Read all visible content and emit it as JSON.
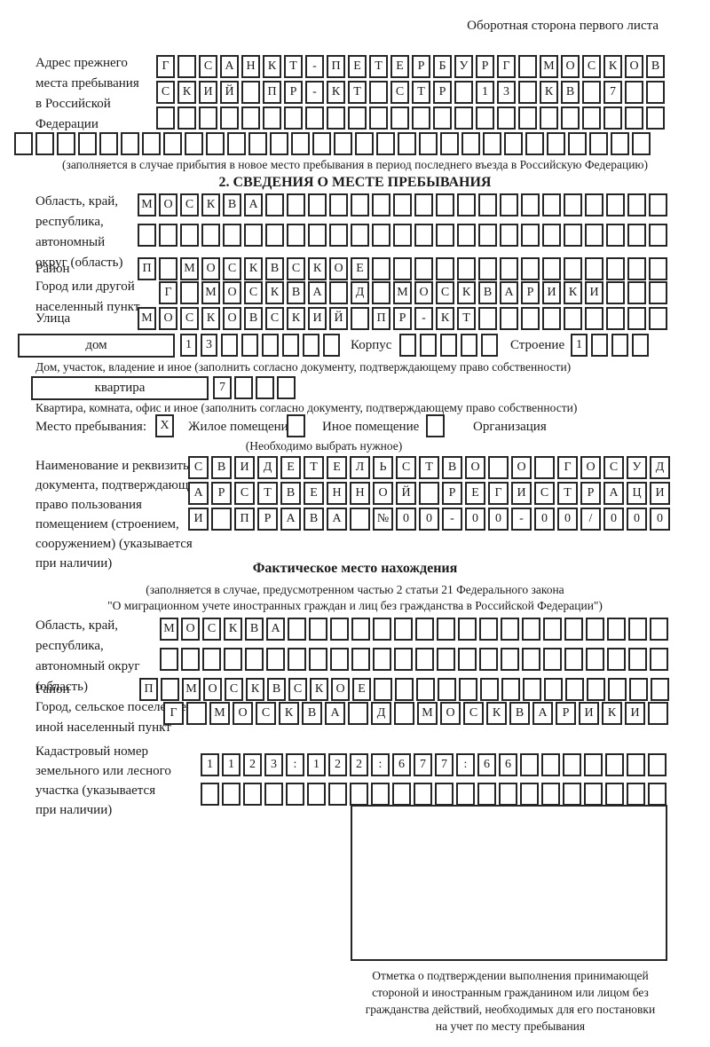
{
  "page": {
    "header_note": "Оборотная сторона первого листа"
  },
  "prev_address": {
    "label": [
      "Адрес прежнего",
      "места пребывания",
      "в Российской",
      "Федерации"
    ],
    "rows": [
      {
        "text": "Г САНКТ-ПЕТЕРБУРГ МОСКОВ",
        "count": 24
      },
      {
        "text": "СКИЙ ПР-КТ СТР 13 КВ 7",
        "count": 24
      },
      {
        "text": "",
        "count": 24
      },
      {
        "text": "",
        "count": 30
      }
    ],
    "note": "(заполняется в случае прибытия в новое место пребывания в период последнего въезда в Российскую Федерацию)"
  },
  "section2": {
    "title": "2. СВЕДЕНИЯ О МЕСТЕ ПРЕБЫВАНИЯ",
    "oblast": {
      "label": [
        "Область, край,",
        "республика,",
        "автономный",
        "округ (область)"
      ],
      "rows": [
        {
          "text": "МОСКВА",
          "count": 25
        },
        {
          "text": "",
          "count": 25
        }
      ]
    },
    "raion": {
      "label": "Район",
      "cells": {
        "text": "П МОСКВСКОЕ",
        "count": 25
      }
    },
    "gorod": {
      "label": [
        "Город или другой",
        "населенный пункт"
      ],
      "cells": {
        "text": "Г МОСКВА Д МОСКВАРИКИ",
        "count": 24
      }
    },
    "ulitsa": {
      "label": "Улица",
      "cells": {
        "text": "МОСКОВСКИЙ ПР-КТ",
        "count": 25
      }
    },
    "dom": {
      "box_label": "дом",
      "cells": {
        "text": "13",
        "count": 8
      },
      "korpus_label": "Корпус",
      "korpus_cells": {
        "text": "",
        "count": 5
      },
      "stroenie_label": "Строение",
      "stroenie_cells": {
        "text": "1",
        "count": 4
      },
      "caption": "Дом, участок, владение и иное (заполнить согласно документу, подтверждающему право собственности)"
    },
    "kvartira": {
      "box_label": "квартира",
      "cells": {
        "text": "7",
        "count": 4
      },
      "caption": "Квартира, комната, офис и иное (заполнить согласно документу, подтверждающему право собственности)"
    },
    "mesto": {
      "label": "Место пребывания:",
      "checked_value": "X",
      "empty_value": "",
      "options": [
        {
          "label": "Жилое помещение"
        },
        {
          "label": "Иное помещение"
        },
        {
          "label": "Организация"
        }
      ],
      "note": "(Необходимо выбрать нужное)"
    },
    "doc": {
      "label": [
        "Наименование и реквизиты",
        "документа, подтверждающего",
        "право пользования",
        "помещением (строением,",
        "сооружением) (указывается",
        "при наличии)"
      ],
      "rows": [
        {
          "text": "СВИДЕТЕЛЬСТВО О ГОСУД",
          "count": 21
        },
        {
          "text": "АРСТВЕННОЙ РЕГИСТРАЦИ",
          "count": 21
        },
        {
          "text": "И ПРАВА №00-00-00/000",
          "count": 21
        }
      ]
    }
  },
  "fact": {
    "title": "Фактическое место нахождения",
    "note1": "(заполняется в случае, предусмотренном частью 2 статьи 21 Федерального закона",
    "note2": "\"О миграционном учете иностранных граждан и лиц без гражданства в Российской Федерации\")",
    "oblast": {
      "label": [
        "Область, край,",
        "республика,",
        "автономный округ",
        "(область)"
      ],
      "rows": [
        {
          "text": "МОСКВА",
          "count": 24
        },
        {
          "text": "",
          "count": 24
        }
      ]
    },
    "raion": {
      "label": "Район",
      "cells": {
        "text": "П МОСКВСКОЕ",
        "count": 25
      }
    },
    "gorod": {
      "label": [
        "Город, сельское поселение,",
        "иной населенный пункт"
      ],
      "cells": {
        "text": "Г МОСКВА Д МОСКВАРИКИ",
        "count": 22
      }
    },
    "kadastr": {
      "label": [
        "Кадастровый номер",
        "земельного или лесного",
        "участка (указывается",
        "при наличии)"
      ],
      "rows": [
        {
          "text": "1123:122:677:66",
          "count": 22
        },
        {
          "text": "",
          "count": 22
        }
      ]
    },
    "stamp_caption": [
      "Отметка о подтверждении выполнения принимающей",
      "стороной и иностранным гражданином или лицом без",
      "гражданства действий, необходимых для его постановки",
      "на учет по месту пребывания"
    ]
  }
}
